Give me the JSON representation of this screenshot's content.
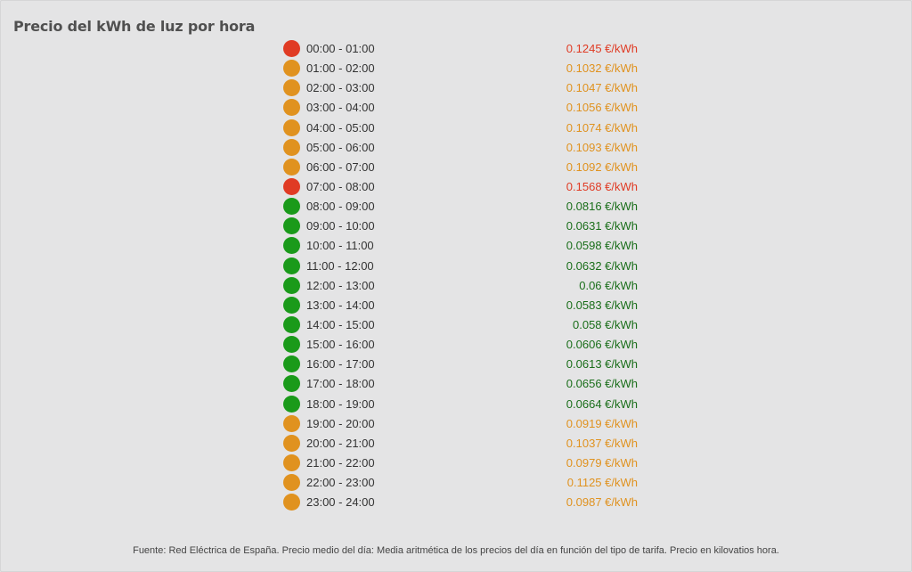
{
  "title": "Precio del kWh de luz por hora",
  "colors": {
    "high": "#e03b24",
    "mid": "#e0921f",
    "low": "#1a9a1a",
    "low_text": "#1a6e1a"
  },
  "rows": [
    {
      "range": "00:00 - 01:00",
      "price": "0.1245 €/kWh",
      "level": "high"
    },
    {
      "range": "01:00 - 02:00",
      "price": "0.1032 €/kWh",
      "level": "mid"
    },
    {
      "range": "02:00 - 03:00",
      "price": "0.1047 €/kWh",
      "level": "mid"
    },
    {
      "range": "03:00 - 04:00",
      "price": "0.1056 €/kWh",
      "level": "mid"
    },
    {
      "range": "04:00 - 05:00",
      "price": "0.1074 €/kWh",
      "level": "mid"
    },
    {
      "range": "05:00 - 06:00",
      "price": "0.1093 €/kWh",
      "level": "mid"
    },
    {
      "range": "06:00 - 07:00",
      "price": "0.1092 €/kWh",
      "level": "mid"
    },
    {
      "range": "07:00 - 08:00",
      "price": "0.1568 €/kWh",
      "level": "high"
    },
    {
      "range": "08:00 - 09:00",
      "price": "0.0816 €/kWh",
      "level": "low"
    },
    {
      "range": "09:00 - 10:00",
      "price": "0.0631 €/kWh",
      "level": "low"
    },
    {
      "range": "10:00 - 11:00",
      "price": "0.0598 €/kWh",
      "level": "low"
    },
    {
      "range": "11:00 - 12:00",
      "price": "0.0632 €/kWh",
      "level": "low"
    },
    {
      "range": "12:00 - 13:00",
      "price": "0.06 €/kWh",
      "level": "low"
    },
    {
      "range": "13:00 - 14:00",
      "price": "0.0583 €/kWh",
      "level": "low"
    },
    {
      "range": "14:00 - 15:00",
      "price": "0.058 €/kWh",
      "level": "low"
    },
    {
      "range": "15:00 - 16:00",
      "price": "0.0606 €/kWh",
      "level": "low"
    },
    {
      "range": "16:00 - 17:00",
      "price": "0.0613 €/kWh",
      "level": "low"
    },
    {
      "range": "17:00 - 18:00",
      "price": "0.0656 €/kWh",
      "level": "low"
    },
    {
      "range": "18:00 - 19:00",
      "price": "0.0664 €/kWh",
      "level": "low"
    },
    {
      "range": "19:00 - 20:00",
      "price": "0.0919 €/kWh",
      "level": "mid"
    },
    {
      "range": "20:00 - 21:00",
      "price": "0.1037 €/kWh",
      "level": "mid"
    },
    {
      "range": "21:00 - 22:00",
      "price": "0.0979 €/kWh",
      "level": "mid"
    },
    {
      "range": "22:00 - 23:00",
      "price": "0.1125 €/kWh",
      "level": "mid"
    },
    {
      "range": "23:00 - 24:00",
      "price": "0.0987 €/kWh",
      "level": "mid"
    }
  ],
  "footer": "Fuente: Red Eléctrica de España. Precio medio del día: Media aritmética de los precios del día en función del tipo de tarifa. Precio en kilovatios hora."
}
